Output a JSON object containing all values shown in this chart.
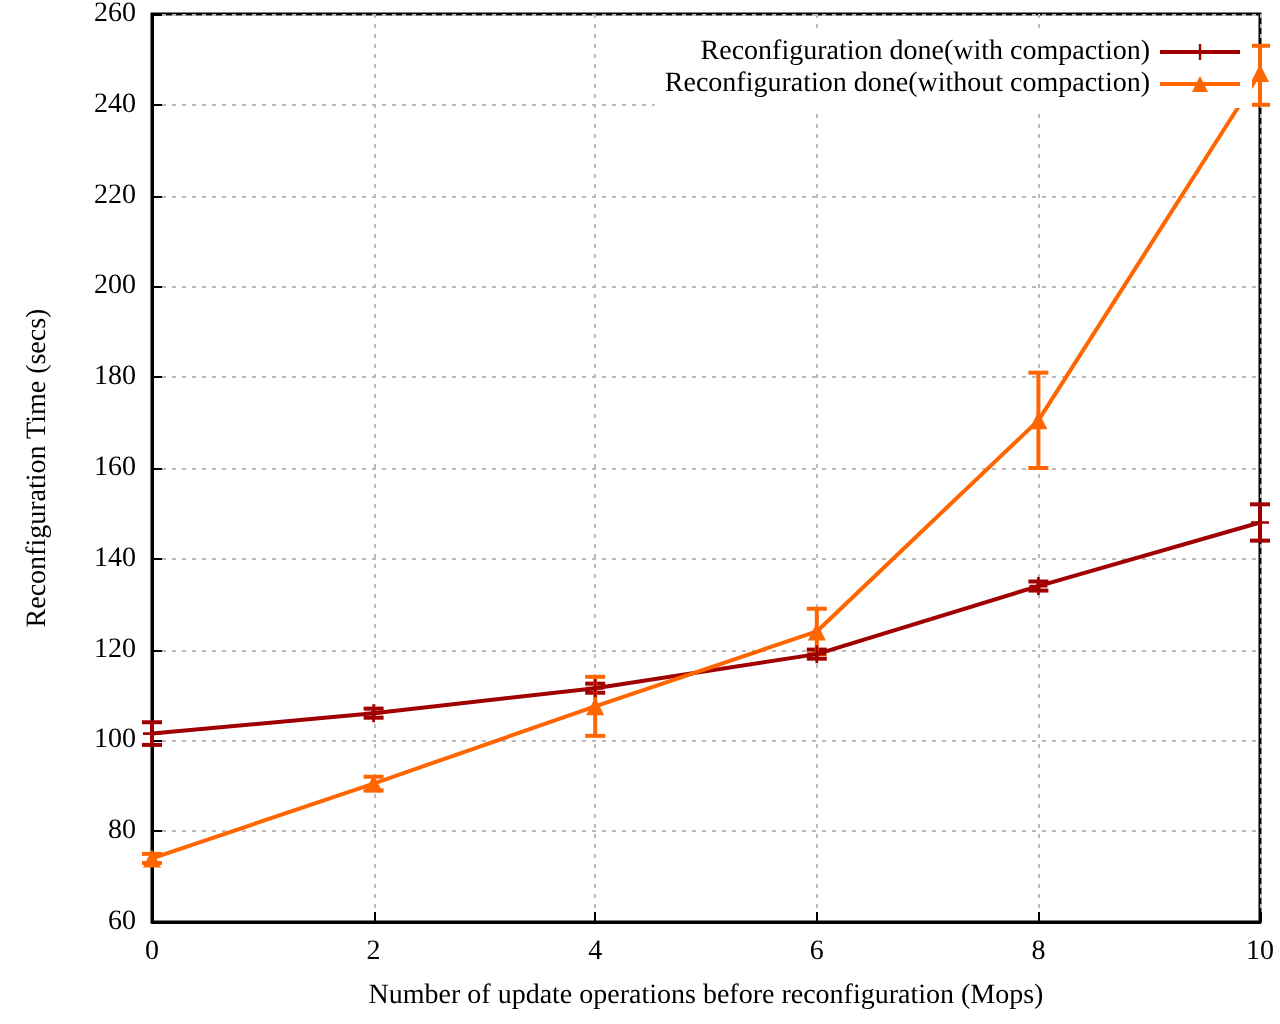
{
  "chart_data": {
    "type": "line",
    "xlabel": "Number of update operations before reconfiguration (Mops)",
    "ylabel": "Reconfiguration Time (secs)",
    "x": [
      0,
      2,
      4,
      6,
      8,
      10
    ],
    "series": [
      {
        "name": "Reconfiguration done(with compaction)",
        "color": "#a00000",
        "marker": "cross",
        "values": [
          101.5,
          106,
          111.5,
          119,
          134,
          148
        ],
        "errors": [
          [
            99,
            104
          ],
          [
            105,
            107
          ],
          [
            110.5,
            112.5
          ],
          [
            118,
            120
          ],
          [
            133,
            135
          ],
          [
            144,
            152
          ]
        ]
      },
      {
        "name": "Reconfiguration done(without compaction)",
        "color": "#ff6600",
        "marker": "triangle",
        "values": [
          74,
          90.5,
          107.5,
          124,
          170.5,
          247
        ],
        "errors": [
          [
            73,
            75
          ],
          [
            89,
            92
          ],
          [
            101,
            114
          ],
          [
            119,
            129
          ],
          [
            160,
            181
          ],
          [
            240,
            253
          ]
        ]
      }
    ],
    "xlim": [
      0,
      10
    ],
    "xticks": [
      0,
      2,
      4,
      6,
      8,
      10
    ],
    "ylim": [
      60,
      260
    ],
    "yticks": [
      60,
      80,
      100,
      120,
      140,
      160,
      180,
      200,
      220,
      240,
      260
    ],
    "grid": true,
    "legend": "top right",
    "line_style": "solid"
  }
}
